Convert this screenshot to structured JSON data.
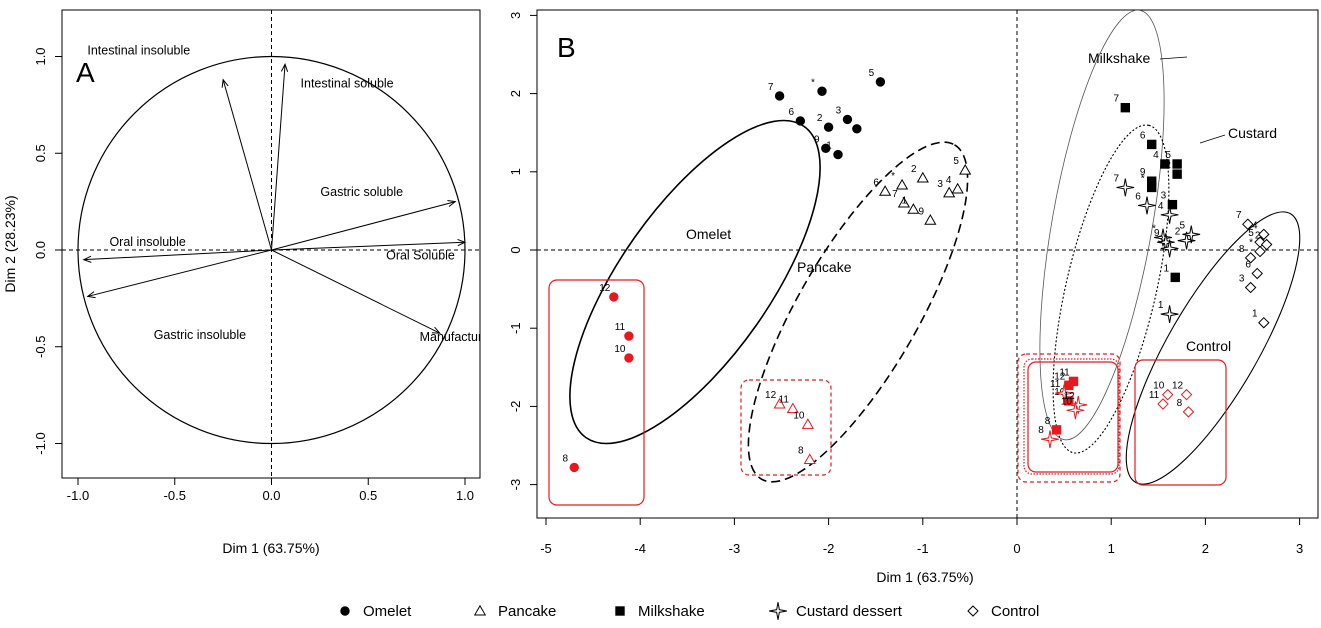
{
  "chart_data": [
    {
      "type": "scatter",
      "panel_label": "A",
      "xlabel": "Dim 1 (63.75%)",
      "ylabel": "Dim 2 (28.23%)",
      "xlim": [
        -1.05,
        1.05
      ],
      "ylim": [
        -1.05,
        1.05
      ],
      "x_ticks": [
        -1.0,
        -0.5,
        0.0,
        0.5,
        1.0
      ],
      "y_ticks": [
        -1.0,
        -0.5,
        0.0,
        0.5,
        1.0
      ],
      "x_tick_labels": [
        "-1.0",
        "-0.5",
        "0.0",
        "0.5",
        "1.0"
      ],
      "y_tick_labels": [
        "-1.0",
        "-0.5",
        "0.0",
        "0.5",
        "1.0"
      ],
      "unit_circle": true,
      "vectors": [
        {
          "name": "Intestinal insoluble",
          "x": -0.25,
          "y": 0.88
        },
        {
          "name": "Intestinal soluble",
          "x": 0.07,
          "y": 0.96
        },
        {
          "name": "Gastric soluble",
          "x": 0.95,
          "y": 0.25
        },
        {
          "name": "Oral insoluble",
          "x": -0.97,
          "y": -0.05
        },
        {
          "name": "Oral Soluble",
          "x": 1.0,
          "y": 0.04
        },
        {
          "name": "Gastric insoluble",
          "x": -0.95,
          "y": -0.24
        },
        {
          "name": "Manufacturing",
          "x": 0.87,
          "y": -0.43
        }
      ]
    },
    {
      "type": "scatter",
      "panel_label": "B",
      "xlabel": "Dim 1 (63.75%)",
      "ylabel": "",
      "xlim": [
        -5.1,
        3.2
      ],
      "ylim": [
        -3.35,
        3.1
      ],
      "x_ticks": [
        -5,
        -4,
        -3,
        -2,
        -1,
        0,
        1,
        2,
        3
      ],
      "y_ticks": [
        -3,
        -2,
        -1,
        0,
        1,
        2,
        3
      ],
      "x_tick_labels": [
        "-5",
        "-4",
        "-3",
        "-2",
        "-1",
        "0",
        "1",
        "2",
        "3"
      ],
      "y_tick_labels": [
        "-3",
        "-2",
        "-1",
        "0",
        "1",
        "2",
        "3"
      ],
      "highlight_color": "#e8191e",
      "series": [
        {
          "name": "Omelet",
          "marker": "filled-circle",
          "points": [
            {
              "label": "7",
              "x": -2.52,
              "y": 1.97
            },
            {
              "label": "*",
              "x": -2.07,
              "y": 2.03
            },
            {
              "label": "5",
              "x": -1.45,
              "y": 2.15
            },
            {
              "label": "6",
              "x": -2.3,
              "y": 1.65
            },
            {
              "label": "2",
              "x": -2.0,
              "y": 1.57
            },
            {
              "label": "3",
              "x": -1.8,
              "y": 1.67
            },
            {
              "label": "4",
              "x": -1.7,
              "y": 1.55
            },
            {
              "label": "9",
              "x": -2.03,
              "y": 1.3
            },
            {
              "label": "1",
              "x": -1.9,
              "y": 1.22
            },
            {
              "label": "12",
              "x": -4.28,
              "y": -0.6,
              "highlight": true
            },
            {
              "label": "11",
              "x": -4.12,
              "y": -1.1,
              "highlight": true
            },
            {
              "label": "10",
              "x": -4.12,
              "y": -1.38,
              "highlight": true
            },
            {
              "label": "8",
              "x": -4.7,
              "y": -2.78,
              "highlight": true
            }
          ]
        },
        {
          "name": "Pancake",
          "marker": "open-triangle",
          "points": [
            {
              "label": "6",
              "x": -1.4,
              "y": 0.75
            },
            {
              "label": "*",
              "x": -1.22,
              "y": 0.83
            },
            {
              "label": "2",
              "x": -1.0,
              "y": 0.92
            },
            {
              "label": "5",
              "x": -0.55,
              "y": 1.02
            },
            {
              "label": "7",
              "x": -1.2,
              "y": 0.6
            },
            {
              "label": "1",
              "x": -1.1,
              "y": 0.52
            },
            {
              "label": "3",
              "x": -0.72,
              "y": 0.73
            },
            {
              "label": "4",
              "x": -0.63,
              "y": 0.78
            },
            {
              "label": "9",
              "x": -0.92,
              "y": 0.38
            },
            {
              "label": "12",
              "x": -2.52,
              "y": -1.97,
              "highlight": true
            },
            {
              "label": "11",
              "x": -2.38,
              "y": -2.03,
              "highlight": true
            },
            {
              "label": "10",
              "x": -2.22,
              "y": -2.23,
              "highlight": true
            },
            {
              "label": "8",
              "x": -2.2,
              "y": -2.68,
              "highlight": true
            }
          ]
        },
        {
          "name": "Milkshake",
          "marker": "filled-square",
          "points": [
            {
              "label": "7",
              "x": 1.15,
              "y": 1.82
            },
            {
              "label": "6",
              "x": 1.43,
              "y": 1.35
            },
            {
              "label": "4",
              "x": 1.57,
              "y": 1.1
            },
            {
              "label": "5",
              "x": 1.7,
              "y": 1.1
            },
            {
              "label": "2",
              "x": 1.7,
              "y": 0.97
            },
            {
              "label": "*",
              "x": 1.43,
              "y": 0.8
            },
            {
              "label": "9",
              "x": 1.43,
              "y": 0.88
            },
            {
              "label": "3",
              "x": 1.65,
              "y": 0.58
            },
            {
              "label": "1",
              "x": 1.68,
              "y": -0.35
            },
            {
              "label": "11",
              "x": 0.6,
              "y": -1.68,
              "highlight": true
            },
            {
              "label": "12",
              "x": 0.55,
              "y": -1.73,
              "highlight": true
            },
            {
              "label": "10",
              "x": 0.55,
              "y": -1.93,
              "highlight": true
            },
            {
              "label": "8",
              "x": 0.42,
              "y": -2.3,
              "highlight": true
            }
          ]
        },
        {
          "name": "Custard dessert",
          "marker": "open-star",
          "points": [
            {
              "label": "7",
              "x": 1.15,
              "y": 0.8
            },
            {
              "label": "6",
              "x": 1.38,
              "y": 0.57
            },
            {
              "label": "4",
              "x": 1.62,
              "y": 0.45
            },
            {
              "label": "*",
              "x": 1.55,
              "y": 0.16
            },
            {
              "label": "9",
              "x": 1.58,
              "y": 0.1
            },
            {
              "label": "3",
              "x": 1.62,
              "y": 0.02
            },
            {
              "label": "2",
              "x": 1.8,
              "y": 0.12
            },
            {
              "label": "5",
              "x": 1.85,
              "y": 0.2
            },
            {
              "label": "1",
              "x": 1.62,
              "y": -0.82
            },
            {
              "label": "11",
              "x": 0.5,
              "y": -1.83,
              "highlight": true
            },
            {
              "label": "12",
              "x": 0.65,
              "y": -1.98,
              "highlight": true
            },
            {
              "label": "10",
              "x": 0.62,
              "y": -2.05,
              "highlight": true
            },
            {
              "label": "8",
              "x": 0.35,
              "y": -2.42,
              "highlight": true
            }
          ]
        },
        {
          "name": "Control",
          "marker": "open-diamond",
          "points": [
            {
              "label": "7",
              "x": 2.45,
              "y": 0.33
            },
            {
              "label": "4",
              "x": 2.62,
              "y": 0.2
            },
            {
              "label": "5",
              "x": 2.58,
              "y": 0.1
            },
            {
              "label": "2",
              "x": 2.65,
              "y": 0.07
            },
            {
              "label": "*",
              "x": 2.58,
              "y": -0.02
            },
            {
              "label": "8",
              "x": 2.48,
              "y": -0.1
            },
            {
              "label": "6",
              "x": 2.55,
              "y": -0.3
            },
            {
              "label": "3",
              "x": 2.48,
              "y": -0.48
            },
            {
              "label": "1",
              "x": 2.62,
              "y": -0.93
            },
            {
              "label": "10",
              "x": 1.6,
              "y": -1.85,
              "highlight": true
            },
            {
              "label": "12",
              "x": 1.8,
              "y": -1.85,
              "highlight": true
            },
            {
              "label": "11",
              "x": 1.55,
              "y": -1.97,
              "highlight": true
            },
            {
              "label": "8",
              "x": 1.82,
              "y": -2.07,
              "highlight": true
            }
          ]
        }
      ],
      "group_labels": [
        {
          "text": "Omelet"
        },
        {
          "text": "Pancake"
        },
        {
          "text": "Milkshake"
        },
        {
          "text": "Custard"
        },
        {
          "text": "Control"
        }
      ]
    }
  ],
  "legend": [
    {
      "label": "Omelet",
      "marker": "filled-circle"
    },
    {
      "label": "Pancake",
      "marker": "open-triangle"
    },
    {
      "label": "Milkshake",
      "marker": "filled-square"
    },
    {
      "label": "Custard dessert",
      "marker": "open-star"
    },
    {
      "label": "Control",
      "marker": "open-diamond"
    }
  ]
}
